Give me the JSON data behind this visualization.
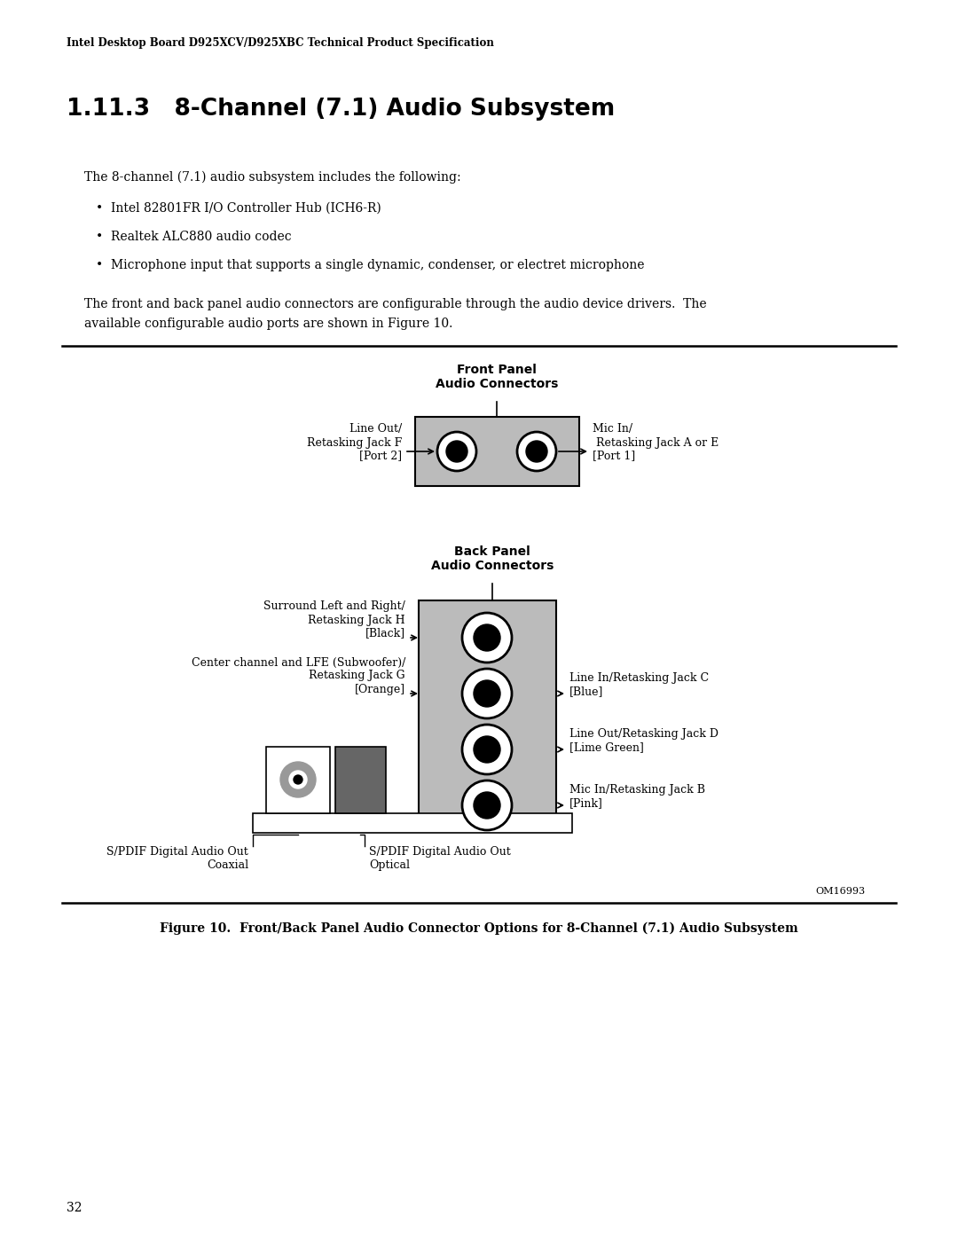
{
  "header_text": "Intel Desktop Board D925XCV/D925XBC Technical Product Specification",
  "section_title": "1.11.3   8-Channel (7.1) Audio Subsystem",
  "body_text": "The 8-channel (7.1) audio subsystem includes the following:",
  "bullets": [
    "Intel 82801FR I/O Controller Hub (ICH6-R)",
    "Realtek ALC880 audio codec",
    "Microphone input that supports a single dynamic, condenser, or electret microphone"
  ],
  "para2_line1": "The front and back panel audio connectors are configurable through the audio device drivers.  The",
  "para2_line2": "available configurable audio ports are shown in Figure 10.",
  "front_panel_label": "Front Panel\nAudio Connectors",
  "back_panel_label": "Back Panel\nAudio Connectors",
  "front_left_label": "Line Out/\nRetasking Jack F\n[Port 2]",
  "front_right_label": "Mic In/\n Retasking Jack A or E\n[Port 1]",
  "back_labels_left": [
    "Surround Left and Right/\nRetasking Jack H\n[Black]",
    "Center channel and LFE (Subwoofer)/\nRetasking Jack G\n[Orange]"
  ],
  "back_labels_right": [
    "Line In/Retasking Jack C\n[Blue]",
    "Line Out/Retasking Jack D\n[Lime Green]",
    "Mic In/Retasking Jack B\n[Pink]"
  ],
  "spdif_coaxial": "S/PDIF Digital Audio Out\nCoaxial",
  "spdif_optical": "S/PDIF Digital Audio Out\nOptical",
  "om_text": "OM16993",
  "figure_caption": "Figure 10.  Front/Back Panel Audio Connector Options for 8-Channel (7.1) Audio Subsystem",
  "page_number": "32",
  "bg_color": "#ffffff",
  "text_color": "#000000",
  "box_gray": "#bbbbbb",
  "dark_gray": "#666666",
  "med_gray": "#999999"
}
